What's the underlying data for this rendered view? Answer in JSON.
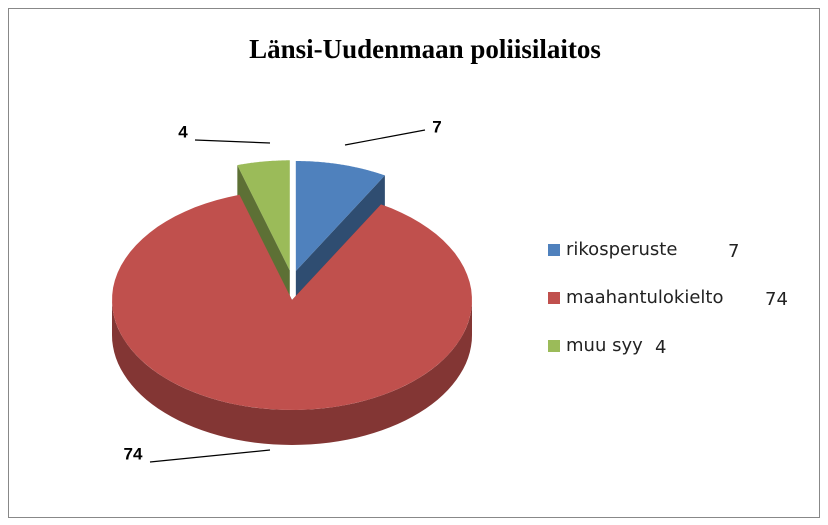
{
  "chart_data": {
    "type": "pie",
    "title": "Länsi-Uudenmaan poliisilaitos",
    "categories": [
      "rikosperuste",
      "maahantulokielto",
      "muu syy"
    ],
    "values": [
      7,
      74,
      4
    ],
    "colors": [
      "#4f81bd",
      "#c0504d",
      "#9bbb59"
    ],
    "exploded": [
      true,
      false,
      true
    ],
    "legend": "right"
  }
}
